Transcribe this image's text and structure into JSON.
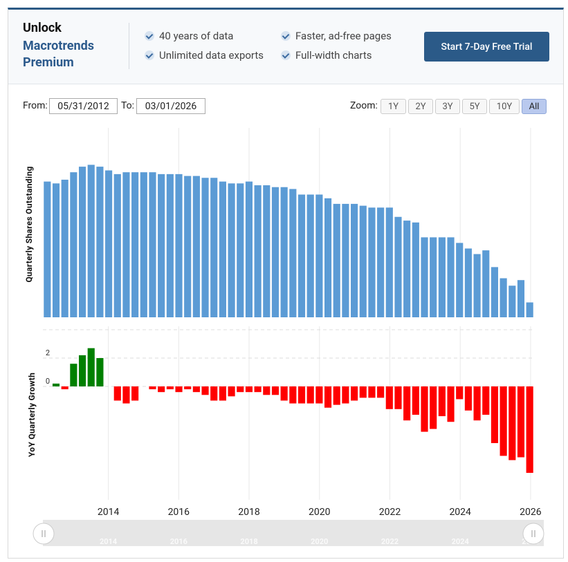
{
  "banner": {
    "title": "Unlock",
    "subtitle": "Macrotrends Premium",
    "features": [
      "40 years of data",
      "Faster, ad-free pages",
      "Unlimited data exports",
      "Full-width charts"
    ],
    "button": "Start 7-Day Free Trial"
  },
  "range": {
    "from_label": "From:",
    "from": "05/31/2012",
    "to_label": "To:",
    "to": "03/01/2026"
  },
  "zoom": {
    "label": "Zoom:",
    "options": [
      "1Y",
      "2Y",
      "3Y",
      "5Y",
      "10Y",
      "All"
    ],
    "selected": "All"
  },
  "chart_data": [
    {
      "type": "bar",
      "y_label": "Quarterly Shares Outstanding",
      "color": "#5b9bd5",
      "values": [
        73,
        72,
        74,
        78,
        81,
        82,
        81,
        79,
        77,
        78,
        78,
        78,
        78,
        77,
        77,
        77,
        76,
        76,
        75,
        75,
        73,
        72,
        72,
        73,
        71,
        71,
        70,
        70,
        69,
        66,
        66,
        66,
        64,
        61,
        61,
        61,
        60,
        59,
        59,
        59,
        54,
        52,
        51,
        43,
        43,
        43,
        43,
        40,
        37,
        34,
        36,
        27,
        21,
        17,
        20,
        8
      ],
      "ylim": [
        0,
        100
      ],
      "xlim": [
        2012.14,
        2026.1
      ],
      "xticks": [
        2014,
        2016,
        2018,
        2020,
        2022,
        2024,
        2026
      ],
      "grid": true
    },
    {
      "type": "bar",
      "y_label": "YoY Quarterly Growth",
      "positive_color": "#008000",
      "negative_color": "#ff0000",
      "values": [
        0,
        0.2,
        -0.2,
        1.6,
        2.2,
        2.7,
        2.0,
        0,
        -1.0,
        -1.2,
        -1.0,
        0,
        -0.2,
        -0.4,
        -0.2,
        -0.4,
        -0.2,
        -0.4,
        -0.6,
        -1.0,
        -1.0,
        -0.7,
        -0.4,
        -0.4,
        -0.4,
        -0.6,
        -0.6,
        -1.0,
        -1.2,
        -1.2,
        -1.2,
        -1.2,
        -1.5,
        -1.3,
        -1.2,
        -1.0,
        -0.8,
        -0.8,
        -0.8,
        -1.6,
        -1.6,
        -2.4,
        -2.0,
        -3.2,
        -3.0,
        -2.1,
        -2.5,
        -0.9,
        -1.7,
        -2.4,
        -2.0,
        -4.0,
        -4.9,
        -5.2,
        -5.0,
        -6.1
      ],
      "ylim": [
        -8,
        4
      ],
      "yticks": [
        0,
        2
      ],
      "xlim": [
        2012.14,
        2026.1
      ],
      "xticks": [
        2014,
        2016,
        2018,
        2020,
        2022,
        2024,
        2026
      ],
      "grid": true
    }
  ]
}
